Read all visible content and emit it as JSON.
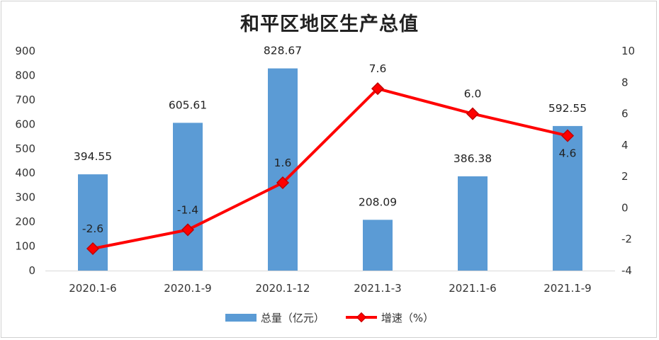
{
  "chart_data": {
    "type": "bar+line",
    "title": "和平区地区生产总值",
    "categories": [
      "2020.1-6",
      "2020.1-9",
      "2020.1-12",
      "2021.1-3",
      "2021.1-6",
      "2021.1-9"
    ],
    "series": [
      {
        "name": "总量（亿元）",
        "type": "bar",
        "axis": "left",
        "color": "#5b9bd5",
        "values": [
          394.55,
          605.61,
          828.67,
          208.09,
          386.38,
          592.55
        ],
        "labels": [
          "394.55",
          "605.61",
          "828.67",
          "208.09",
          "386.38",
          "592.55"
        ]
      },
      {
        "name": "增速（%）",
        "type": "line",
        "axis": "right",
        "color": "#ff0000",
        "marker_color": "#c00000",
        "values": [
          -2.6,
          -1.4,
          1.6,
          7.6,
          6.0,
          4.6
        ],
        "labels": [
          "-2.6",
          "-1.4",
          "1.6",
          "7.6",
          "6.0",
          "4.6"
        ]
      }
    ],
    "y_left": {
      "min": 0,
      "max": 900,
      "step": 100,
      "ticks": [
        "0",
        "100",
        "200",
        "300",
        "400",
        "500",
        "600",
        "700",
        "800",
        "900"
      ]
    },
    "y_right": {
      "min": -4,
      "max": 10,
      "step": 2,
      "ticks": [
        "-4",
        "-2",
        "0",
        "2",
        "4",
        "6",
        "8",
        "10"
      ]
    },
    "grid": false,
    "legend_position": "bottom"
  }
}
